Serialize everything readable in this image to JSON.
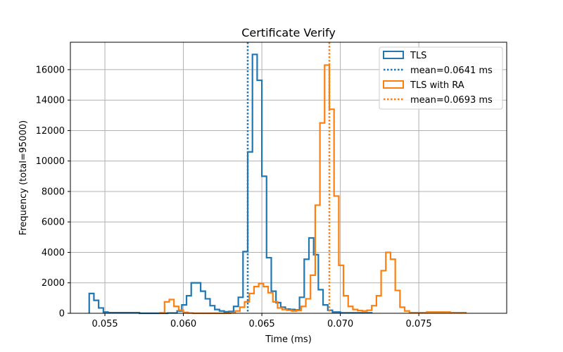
{
  "chart_data": {
    "type": "histogram",
    "title": "Certificate Verify",
    "xlabel": "Time (ms)",
    "ylabel": "Frequency (total=95000)",
    "xlim": [
      0.0528,
      0.0806
    ],
    "ylim": [
      0,
      17800
    ],
    "xticks": [
      0.055,
      0.06,
      0.065,
      0.07,
      0.075
    ],
    "xtick_labels": [
      "0.055",
      "0.060",
      "0.065",
      "0.070",
      "0.075"
    ],
    "yticks": [
      0,
      2000,
      4000,
      6000,
      8000,
      10000,
      12000,
      14000,
      16000
    ],
    "ytick_labels": [
      "0",
      "2000",
      "4000",
      "6000",
      "8000",
      "10000",
      "12000",
      "14000",
      "16000"
    ],
    "grid": true,
    "legend_position": "top-right",
    "series": [
      {
        "name": "TLS",
        "color": "#1f77b4",
        "bins": [
          [
            0.054,
            0.0543,
            1300
          ],
          [
            0.0543,
            0.0546,
            850
          ],
          [
            0.0546,
            0.0549,
            350
          ],
          [
            0.0549,
            0.0552,
            80
          ],
          [
            0.0552,
            0.0572,
            40
          ],
          [
            0.0572,
            0.059,
            0
          ],
          [
            0.059,
            0.0596,
            20
          ],
          [
            0.0596,
            0.0599,
            150
          ],
          [
            0.0599,
            0.0602,
            550
          ],
          [
            0.0602,
            0.0605,
            1150
          ],
          [
            0.0605,
            0.0608,
            2000
          ],
          [
            0.0608,
            0.0611,
            2000
          ],
          [
            0.0611,
            0.0614,
            1450
          ],
          [
            0.0614,
            0.0617,
            950
          ],
          [
            0.0617,
            0.062,
            500
          ],
          [
            0.062,
            0.0623,
            250
          ],
          [
            0.0623,
            0.0626,
            150
          ],
          [
            0.0626,
            0.0629,
            100
          ],
          [
            0.0629,
            0.0632,
            120
          ],
          [
            0.0632,
            0.0635,
            450
          ],
          [
            0.0635,
            0.0638,
            1050
          ],
          [
            0.0638,
            0.0641,
            4050
          ],
          [
            0.0641,
            0.0644,
            10600
          ],
          [
            0.0644,
            0.0647,
            17000
          ],
          [
            0.0647,
            0.065,
            15300
          ],
          [
            0.065,
            0.0653,
            9000
          ],
          [
            0.0653,
            0.0656,
            3650
          ],
          [
            0.0656,
            0.0659,
            1450
          ],
          [
            0.0659,
            0.0662,
            700
          ],
          [
            0.0662,
            0.0665,
            400
          ],
          [
            0.0665,
            0.0668,
            280
          ],
          [
            0.0668,
            0.0671,
            250
          ],
          [
            0.0671,
            0.0674,
            220
          ],
          [
            0.0674,
            0.0677,
            1050
          ],
          [
            0.0677,
            0.068,
            3550
          ],
          [
            0.068,
            0.0683,
            4950
          ],
          [
            0.0683,
            0.0686,
            3850
          ],
          [
            0.0686,
            0.0689,
            1550
          ],
          [
            0.0689,
            0.0692,
            550
          ],
          [
            0.0692,
            0.0695,
            200
          ],
          [
            0.0695,
            0.07,
            80
          ],
          [
            0.07,
            0.072,
            30
          ]
        ]
      },
      {
        "name": "TLS with RA",
        "color": "#ff7f0e",
        "bins": [
          [
            0.0585,
            0.0588,
            30
          ],
          [
            0.0588,
            0.0591,
            750
          ],
          [
            0.0591,
            0.0594,
            900
          ],
          [
            0.0594,
            0.0597,
            450
          ],
          [
            0.0597,
            0.06,
            200
          ],
          [
            0.06,
            0.0603,
            60
          ],
          [
            0.0603,
            0.0606,
            20
          ],
          [
            0.0606,
            0.063,
            0
          ],
          [
            0.063,
            0.0633,
            50
          ],
          [
            0.0633,
            0.0636,
            150
          ],
          [
            0.0636,
            0.0639,
            400
          ],
          [
            0.0639,
            0.0642,
            750
          ],
          [
            0.0642,
            0.0645,
            1300
          ],
          [
            0.0645,
            0.0648,
            1750
          ],
          [
            0.0648,
            0.0651,
            1950
          ],
          [
            0.0651,
            0.0654,
            1750
          ],
          [
            0.0654,
            0.0657,
            1350
          ],
          [
            0.0657,
            0.066,
            750
          ],
          [
            0.066,
            0.0663,
            350
          ],
          [
            0.0663,
            0.0666,
            250
          ],
          [
            0.0666,
            0.0669,
            200
          ],
          [
            0.0669,
            0.0672,
            150
          ],
          [
            0.0672,
            0.0675,
            180
          ],
          [
            0.0675,
            0.0678,
            450
          ],
          [
            0.0678,
            0.0681,
            950
          ],
          [
            0.0681,
            0.0684,
            2500
          ],
          [
            0.0684,
            0.0687,
            7100
          ],
          [
            0.0687,
            0.069,
            12500
          ],
          [
            0.069,
            0.0693,
            16300
          ],
          [
            0.0693,
            0.0696,
            13400
          ],
          [
            0.0696,
            0.0699,
            7700
          ],
          [
            0.0699,
            0.0702,
            3150
          ],
          [
            0.0702,
            0.0705,
            1150
          ],
          [
            0.0705,
            0.0708,
            450
          ],
          [
            0.0708,
            0.0711,
            250
          ],
          [
            0.0711,
            0.0714,
            180
          ],
          [
            0.0714,
            0.0717,
            150
          ],
          [
            0.0717,
            0.072,
            200
          ],
          [
            0.072,
            0.0723,
            500
          ],
          [
            0.0723,
            0.0726,
            1150
          ],
          [
            0.0726,
            0.0729,
            2800
          ],
          [
            0.0729,
            0.0732,
            4000
          ],
          [
            0.0732,
            0.0735,
            3550
          ],
          [
            0.0735,
            0.0738,
            1500
          ],
          [
            0.0738,
            0.0741,
            400
          ],
          [
            0.0741,
            0.0744,
            150
          ],
          [
            0.0744,
            0.0755,
            40
          ],
          [
            0.0755,
            0.077,
            80
          ],
          [
            0.077,
            0.078,
            40
          ]
        ]
      }
    ],
    "mean_lines": [
      {
        "label": "mean=0.0641 ms",
        "value": 0.0641,
        "color": "#1f77b4",
        "style": "dotted"
      },
      {
        "label": "mean=0.0693 ms",
        "value": 0.0693,
        "color": "#ff7f0e",
        "style": "dotted"
      }
    ]
  }
}
